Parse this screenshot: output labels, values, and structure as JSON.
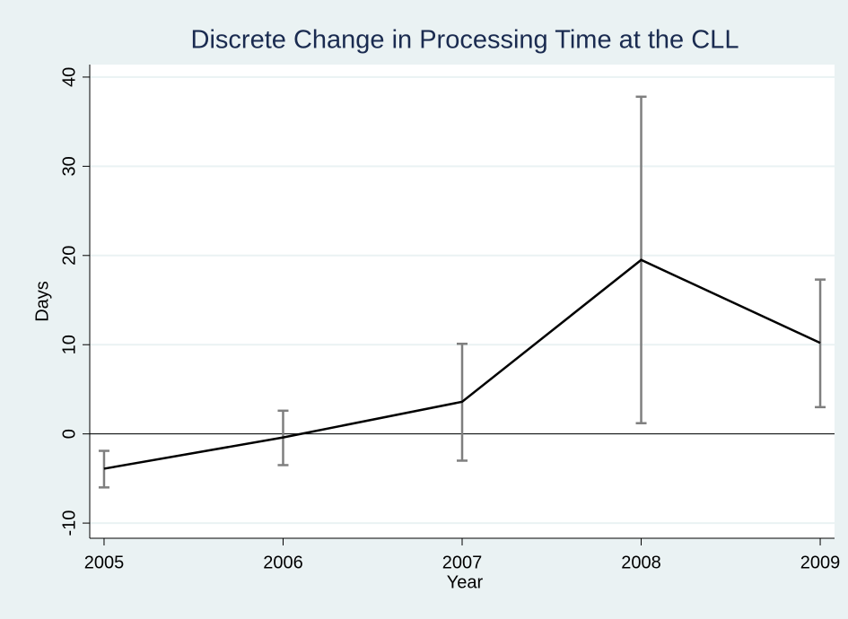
{
  "chart_data": {
    "type": "line",
    "title": "Discrete Change in Processing Time at the CLL",
    "x_label": "Year",
    "y_label": "Days",
    "x": [
      2005,
      2006,
      2007,
      2008,
      2009
    ],
    "values": [
      -3.9,
      -0.4,
      3.6,
      19.5,
      10.2
    ],
    "ci_low": [
      -6.0,
      -3.5,
      -3.0,
      1.2,
      3.0
    ],
    "ci_high": [
      -1.9,
      2.6,
      10.1,
      37.8,
      17.3
    ],
    "color": "#000000",
    "ci_color": "#7f7f7f",
    "xlim": [
      2004.92,
      2009.08
    ],
    "xticks": [
      2005,
      2006,
      2007,
      2008,
      2009
    ],
    "ylim": [
      -11.7,
      41.4
    ],
    "yticks": [
      -10,
      0,
      10,
      20,
      30,
      40
    ],
    "reference_line": 0,
    "grid": true
  }
}
